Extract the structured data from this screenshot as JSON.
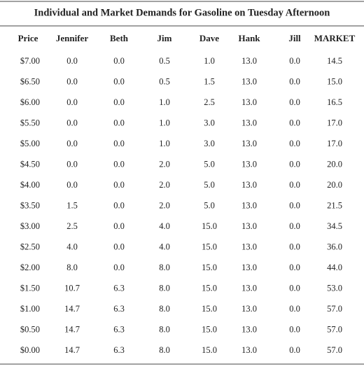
{
  "table": {
    "title": "Individual and Market Demands for Gasoline on Tuesday Afternoon",
    "header": [
      "Price",
      "Jennifer",
      "Beth",
      "Jim",
      "Dave",
      "Hank",
      "Jill",
      "MARKET"
    ],
    "rows": [
      [
        "$7.00",
        "0.0",
        "0.0",
        "0.5",
        "1.0",
        "13.0",
        "0.0",
        "14.5"
      ],
      [
        "$6.50",
        "0.0",
        "0.0",
        "0.5",
        "1.5",
        "13.0",
        "0.0",
        "15.0"
      ],
      [
        "$6.00",
        "0.0",
        "0.0",
        "1.0",
        "2.5",
        "13.0",
        "0.0",
        "16.5"
      ],
      [
        "$5.50",
        "0.0",
        "0.0",
        "1.0",
        "3.0",
        "13.0",
        "0.0",
        "17.0"
      ],
      [
        "$5.00",
        "0.0",
        "0.0",
        "1.0",
        "3.0",
        "13.0",
        "0.0",
        "17.0"
      ],
      [
        "$4.50",
        "0.0",
        "0.0",
        "2.0",
        "5.0",
        "13.0",
        "0.0",
        "20.0"
      ],
      [
        "$4.00",
        "0.0",
        "0.0",
        "2.0",
        "5.0",
        "13.0",
        "0.0",
        "20.0"
      ],
      [
        "$3.50",
        "1.5",
        "0.0",
        "2.0",
        "5.0",
        "13.0",
        "0.0",
        "21.5"
      ],
      [
        "$3.00",
        "2.5",
        "0.0",
        "4.0",
        "15.0",
        "13.0",
        "0.0",
        "34.5"
      ],
      [
        "$2.50",
        "4.0",
        "0.0",
        "4.0",
        "15.0",
        "13.0",
        "0.0",
        "36.0"
      ],
      [
        "$2.00",
        "8.0",
        "0.0",
        "8.0",
        "15.0",
        "13.0",
        "0.0",
        "44.0"
      ],
      [
        "$1.50",
        "10.7",
        "6.3",
        "8.0",
        "15.0",
        "13.0",
        "0.0",
        "53.0"
      ],
      [
        "$1.00",
        "14.7",
        "6.3",
        "8.0",
        "15.0",
        "13.0",
        "0.0",
        "57.0"
      ],
      [
        "$0.50",
        "14.7",
        "6.3",
        "8.0",
        "15.0",
        "13.0",
        "0.0",
        "57.0"
      ],
      [
        "$0.00",
        "14.7",
        "6.3",
        "8.0",
        "15.0",
        "13.0",
        "0.0",
        "57.0"
      ]
    ]
  }
}
